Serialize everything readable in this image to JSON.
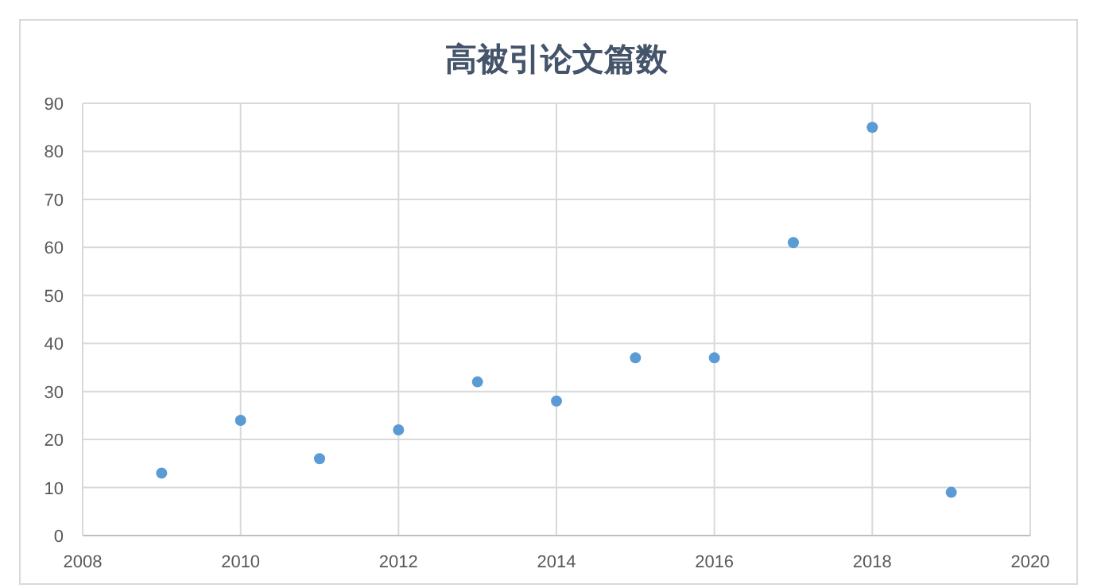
{
  "chart_data": {
    "type": "scatter",
    "title": "高被引论文篇数",
    "x": [
      2009,
      2010,
      2011,
      2012,
      2013,
      2014,
      2015,
      2016,
      2017,
      2018,
      2019
    ],
    "values": [
      13,
      24,
      16,
      22,
      32,
      28,
      37,
      37,
      61,
      85,
      9
    ],
    "color": "#5b9bd5",
    "marker": "circle",
    "xlim": [
      2008,
      2020
    ],
    "ylim": [
      0,
      90
    ],
    "xticks": [
      2008,
      2010,
      2012,
      2014,
      2016,
      2018,
      2020
    ],
    "yticks": [
      0,
      10,
      20,
      30,
      40,
      50,
      60,
      70,
      80,
      90
    ],
    "grid": true
  }
}
